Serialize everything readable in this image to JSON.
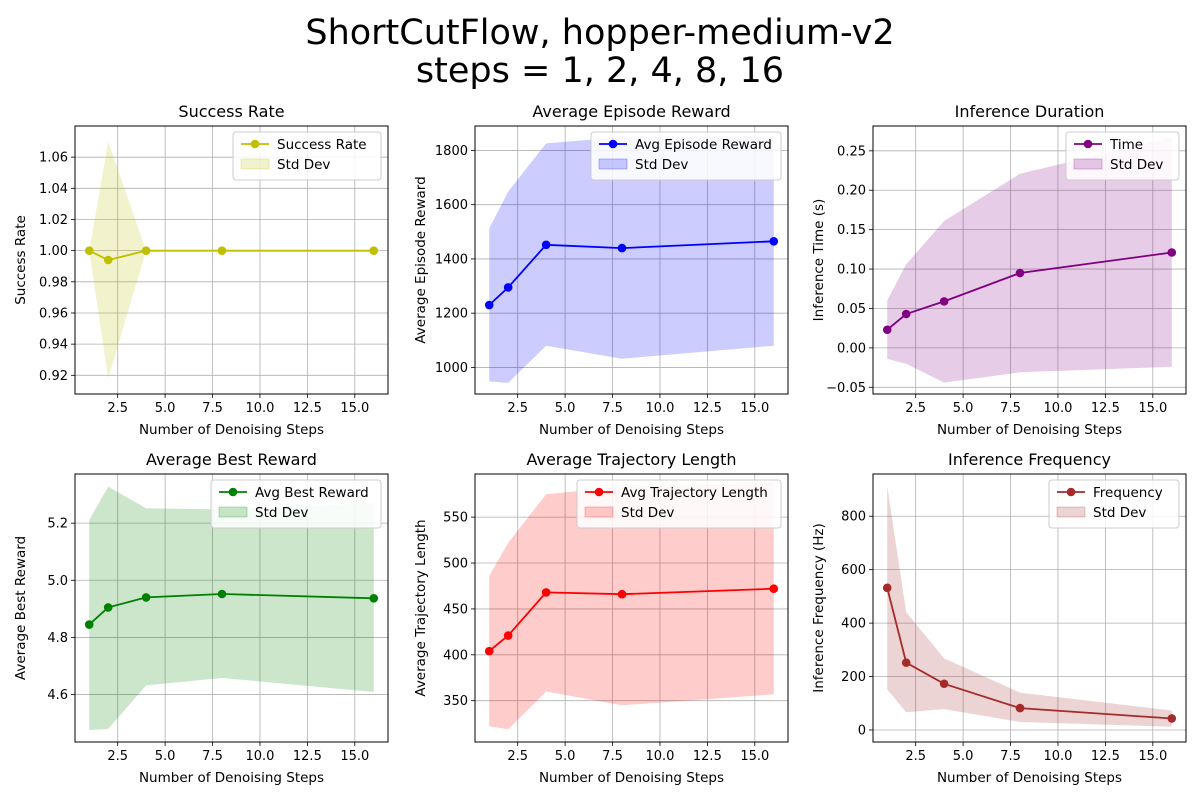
{
  "figure": {
    "title_line1": "ShortCutFlow, hopper-medium-v2",
    "title_line2": "steps = 1, 2, 4, 8, 16"
  },
  "chart_data": [
    {
      "type": "line",
      "title": "Success Rate",
      "xlabel": "Number of Denoising Steps",
      "ylabel": "Success Rate",
      "x": [
        1,
        2,
        4,
        8,
        16
      ],
      "series": [
        {
          "name": "Success Rate",
          "values": [
            1.0,
            0.994,
            1.0,
            1.0,
            1.0
          ]
        }
      ],
      "band": {
        "name": "Std Dev",
        "lower": [
          1.0,
          0.918,
          1.0,
          1.0,
          1.0
        ],
        "upper": [
          1.0,
          1.07,
          1.0,
          1.0,
          1.0
        ]
      },
      "xlim": [
        0.25,
        16.75
      ],
      "ylim": [
        0.908,
        1.08
      ],
      "xticks": [
        2.5,
        5.0,
        7.5,
        10.0,
        12.5,
        15.0
      ],
      "xtick_labels": [
        "2.5",
        "5.0",
        "7.5",
        "10.0",
        "12.5",
        "15.0"
      ],
      "yticks": [
        0.92,
        0.94,
        0.96,
        0.98,
        1.0,
        1.02,
        1.04,
        1.06
      ],
      "ytick_labels": [
        "0.92",
        "0.94",
        "0.96",
        "0.98",
        "1.00",
        "1.02",
        "1.04",
        "1.06"
      ],
      "grid": true,
      "legend": "upper right",
      "color": "#bfbf00"
    },
    {
      "type": "line",
      "title": "Average Episode Reward",
      "xlabel": "Number of Denoising Steps",
      "ylabel": "Average Episode Reward",
      "x": [
        1,
        2,
        4,
        8,
        16
      ],
      "series": [
        {
          "name": "Avg Episode Reward",
          "values": [
            1230,
            1295,
            1452,
            1440,
            1465
          ]
        }
      ],
      "band": {
        "name": "Std Dev",
        "lower": [
          948,
          943,
          1080,
          1032,
          1080
        ],
        "upper": [
          1512,
          1648,
          1826,
          1849,
          1851
        ]
      },
      "xlim": [
        0.25,
        16.75
      ],
      "ylim": [
        902,
        1890
      ],
      "xticks": [
        2.5,
        5.0,
        7.5,
        10.0,
        12.5,
        15.0
      ],
      "xtick_labels": [
        "2.5",
        "5.0",
        "7.5",
        "10.0",
        "12.5",
        "15.0"
      ],
      "yticks": [
        1000,
        1200,
        1400,
        1600,
        1800
      ],
      "ytick_labels": [
        "1000",
        "1200",
        "1400",
        "1600",
        "1800"
      ],
      "grid": true,
      "legend": "upper right",
      "color": "#0000ff"
    },
    {
      "type": "line",
      "title": "Inference Duration",
      "xlabel": "Number of Denoising Steps",
      "ylabel": "Inference Time (s)",
      "x": [
        1,
        2,
        4,
        8,
        16
      ],
      "series": [
        {
          "name": "Time",
          "values": [
            0.023,
            0.043,
            0.059,
            0.095,
            0.121
          ]
        }
      ],
      "band": {
        "name": "Std Dev",
        "lower": [
          -0.014,
          -0.02,
          -0.044,
          -0.031,
          -0.024
        ],
        "upper": [
          0.06,
          0.106,
          0.161,
          0.221,
          0.267
        ]
      },
      "xlim": [
        0.25,
        16.75
      ],
      "ylim": [
        -0.0585,
        0.2815
      ],
      "xticks": [
        2.5,
        5.0,
        7.5,
        10.0,
        12.5,
        15.0
      ],
      "xtick_labels": [
        "2.5",
        "5.0",
        "7.5",
        "10.0",
        "12.5",
        "15.0"
      ],
      "yticks": [
        -0.05,
        0.0,
        0.05,
        0.1,
        0.15,
        0.2,
        0.25
      ],
      "ytick_labels": [
        "−0.05",
        "0.00",
        "0.05",
        "0.10",
        "0.15",
        "0.20",
        "0.25"
      ],
      "grid": true,
      "legend": "upper right",
      "color": "#800080"
    },
    {
      "type": "line",
      "title": "Average Best Reward",
      "xlabel": "Number of Denoising Steps",
      "ylabel": "Average Best Reward",
      "x": [
        1,
        2,
        4,
        8,
        16
      ],
      "series": [
        {
          "name": "Avg Best Reward",
          "values": [
            4.845,
            4.905,
            4.94,
            4.952,
            4.937
          ]
        }
      ],
      "band": {
        "name": "Std Dev",
        "lower": [
          4.476,
          4.48,
          4.632,
          4.658,
          4.609
        ],
        "upper": [
          5.211,
          5.328,
          5.252,
          5.248,
          5.27
        ]
      },
      "xlim": [
        0.25,
        16.75
      ],
      "ylim": [
        4.434,
        5.372
      ],
      "xticks": [
        2.5,
        5.0,
        7.5,
        10.0,
        12.5,
        15.0
      ],
      "xtick_labels": [
        "2.5",
        "5.0",
        "7.5",
        "10.0",
        "12.5",
        "15.0"
      ],
      "yticks": [
        4.6,
        4.8,
        5.0,
        5.2
      ],
      "ytick_labels": [
        "4.6",
        "4.8",
        "5.0",
        "5.2"
      ],
      "grid": true,
      "legend": "upper right",
      "color": "#008000"
    },
    {
      "type": "line",
      "title": "Average Trajectory Length",
      "xlabel": "Number of Denoising Steps",
      "ylabel": "Average Trajectory Length",
      "x": [
        1,
        2,
        4,
        8,
        16
      ],
      "series": [
        {
          "name": "Avg Trajectory Length",
          "values": [
            404,
            421,
            468,
            466,
            472
          ]
        }
      ],
      "band": {
        "name": "Std Dev",
        "lower": [
          322,
          319,
          360,
          345,
          357
        ],
        "upper": [
          486,
          522,
          575,
          583,
          588
        ]
      },
      "xlim": [
        0.25,
        16.75
      ],
      "ylim": [
        305,
        597
      ],
      "xticks": [
        2.5,
        5.0,
        7.5,
        10.0,
        12.5,
        15.0
      ],
      "xtick_labels": [
        "2.5",
        "5.0",
        "7.5",
        "10.0",
        "12.5",
        "15.0"
      ],
      "yticks": [
        350,
        400,
        450,
        500,
        550
      ],
      "ytick_labels": [
        "350",
        "400",
        "450",
        "500",
        "550"
      ],
      "grid": true,
      "legend": "upper right",
      "color": "#ff0000"
    },
    {
      "type": "line",
      "title": "Inference Frequency",
      "xlabel": "Number of Denoising Steps",
      "ylabel": "Inference Frequency (Hz)",
      "x": [
        1,
        2,
        4,
        8,
        16
      ],
      "series": [
        {
          "name": "Frequency",
          "values": [
            532,
            252,
            173,
            82,
            43
          ]
        }
      ],
      "band": {
        "name": "Std Dev",
        "lower": [
          152,
          66,
          78,
          30,
          12
        ],
        "upper": [
          912,
          441,
          268,
          140,
          73
        ]
      },
      "xlim": [
        0.25,
        16.75
      ],
      "ylim": [
        -45,
        958
      ],
      "xticks": [
        2.5,
        5.0,
        7.5,
        10.0,
        12.5,
        15.0
      ],
      "xtick_labels": [
        "2.5",
        "5.0",
        "7.5",
        "10.0",
        "12.5",
        "15.0"
      ],
      "yticks": [
        0,
        200,
        400,
        600,
        800
      ],
      "ytick_labels": [
        "0",
        "200",
        "400",
        "600",
        "800"
      ],
      "grid": true,
      "legend": "upper right",
      "color": "#a52a2a"
    }
  ]
}
